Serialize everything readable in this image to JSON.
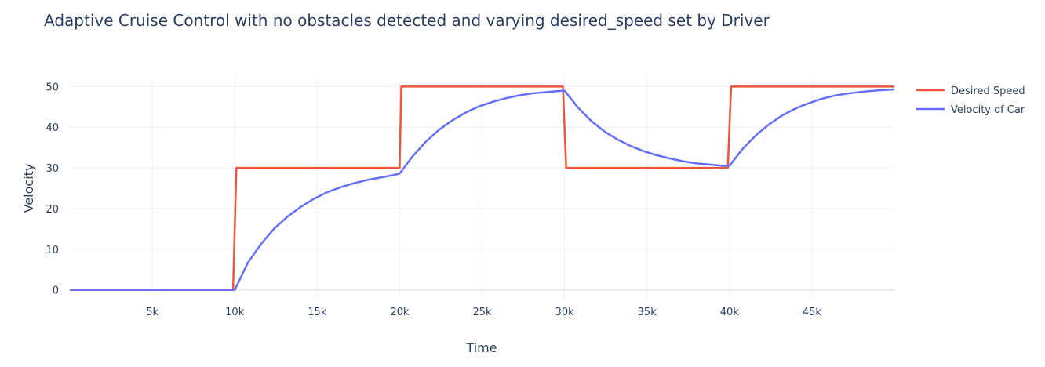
{
  "chart_data": {
    "type": "line",
    "title": "Adaptive Cruise Control with no obstacles detected and varying desired_speed set by Driver",
    "xlabel": "Time",
    "ylabel": "Velocity",
    "xlim": [
      0,
      50000
    ],
    "ylim": [
      -2,
      52
    ],
    "x_ticks": [
      5000,
      10000,
      15000,
      20000,
      25000,
      30000,
      35000,
      40000,
      45000
    ],
    "x_tick_labels": [
      "5k",
      "10k",
      "15k",
      "20k",
      "25k",
      "30k",
      "35k",
      "40k",
      "45k"
    ],
    "y_ticks": [
      0,
      10,
      20,
      30,
      40,
      50
    ],
    "y_tick_labels": [
      "0",
      "10",
      "20",
      "30",
      "40",
      "50"
    ],
    "grid": true,
    "legend_position": "top-right",
    "series": [
      {
        "name": "Desired Speed",
        "color": "#ef553b",
        "x": [
          0,
          9900,
          10100,
          20000,
          20100,
          29900,
          30100,
          39900,
          40100,
          50000
        ],
        "y": [
          0,
          0,
          30,
          30,
          50,
          50,
          30,
          30,
          50,
          50
        ]
      },
      {
        "name": "Velocity of Car",
        "color": "#636efa",
        "x": [
          0,
          10000,
          10800,
          11600,
          12400,
          13200,
          14000,
          14800,
          15600,
          16400,
          17200,
          18000,
          18800,
          19600,
          20000,
          20800,
          21600,
          22400,
          23200,
          24000,
          24800,
          25600,
          26400,
          27200,
          28000,
          28800,
          29600,
          30000,
          30800,
          31600,
          32400,
          33200,
          34000,
          34800,
          35600,
          36400,
          37200,
          38000,
          38800,
          39600,
          40000,
          40800,
          41600,
          42400,
          43200,
          44000,
          44800,
          45600,
          46400,
          47200,
          48000,
          48800,
          49600,
          50000
        ],
        "y": [
          0,
          0,
          6.7,
          11.3,
          15.1,
          18.0,
          20.4,
          22.4,
          24.0,
          25.2,
          26.2,
          27.0,
          27.6,
          28.2,
          28.6,
          32.9,
          36.5,
          39.4,
          41.7,
          43.6,
          45.1,
          46.2,
          47.1,
          47.8,
          48.3,
          48.6,
          48.9,
          49.0,
          44.9,
          41.6,
          39.0,
          37.0,
          35.4,
          34.1,
          33.1,
          32.3,
          31.6,
          31.1,
          30.8,
          30.5,
          30.5,
          34.7,
          38.0,
          40.7,
          42.9,
          44.6,
          45.9,
          47.0,
          47.8,
          48.3,
          48.7,
          49.0,
          49.2,
          49.3
        ]
      }
    ]
  }
}
